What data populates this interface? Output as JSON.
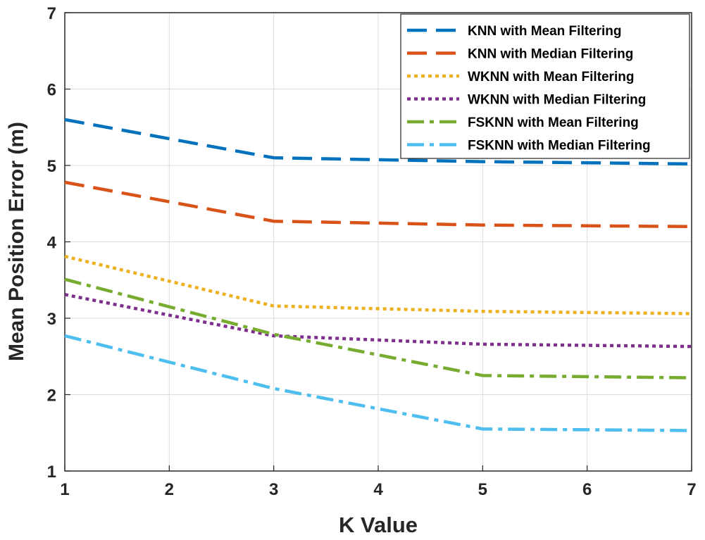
{
  "chart_data": {
    "type": "line",
    "title": "",
    "xlabel": "K Value",
    "ylabel": "Mean Position Error (m)",
    "xlim": [
      1,
      7
    ],
    "ylim": [
      1,
      7
    ],
    "xticks": [
      "1",
      "2",
      "3",
      "4",
      "5",
      "6",
      "7"
    ],
    "yticks": [
      "1",
      "2",
      "3",
      "4",
      "5",
      "6",
      "7"
    ],
    "grid": true,
    "legend_position": "top-right",
    "x": [
      1,
      3,
      5,
      7
    ],
    "series": [
      {
        "name": "KNN with Mean Filtering",
        "values": [
          5.6,
          5.1,
          5.05,
          5.02
        ],
        "color": "#0072BD",
        "style": "dashed"
      },
      {
        "name": "KNN with Median Filtering",
        "values": [
          4.78,
          4.27,
          4.22,
          4.2
        ],
        "color": "#D95319",
        "style": "dashed"
      },
      {
        "name": "WKNN with Mean Filtering",
        "values": [
          3.81,
          3.16,
          3.09,
          3.06
        ],
        "color": "#EDB120",
        "style": "dotted"
      },
      {
        "name": "WKNN with Median Filtering",
        "values": [
          3.31,
          2.77,
          2.66,
          2.63
        ],
        "color": "#7E2F8E",
        "style": "dotted"
      },
      {
        "name": "FSKNN with Mean Filtering",
        "values": [
          3.51,
          2.79,
          2.25,
          2.22
        ],
        "color": "#77AC30",
        "style": "dashdot"
      },
      {
        "name": "FSKNN with Median Filtering",
        "values": [
          2.77,
          2.08,
          1.55,
          1.53
        ],
        "color": "#4DBEEE",
        "style": "dashdot"
      }
    ]
  }
}
